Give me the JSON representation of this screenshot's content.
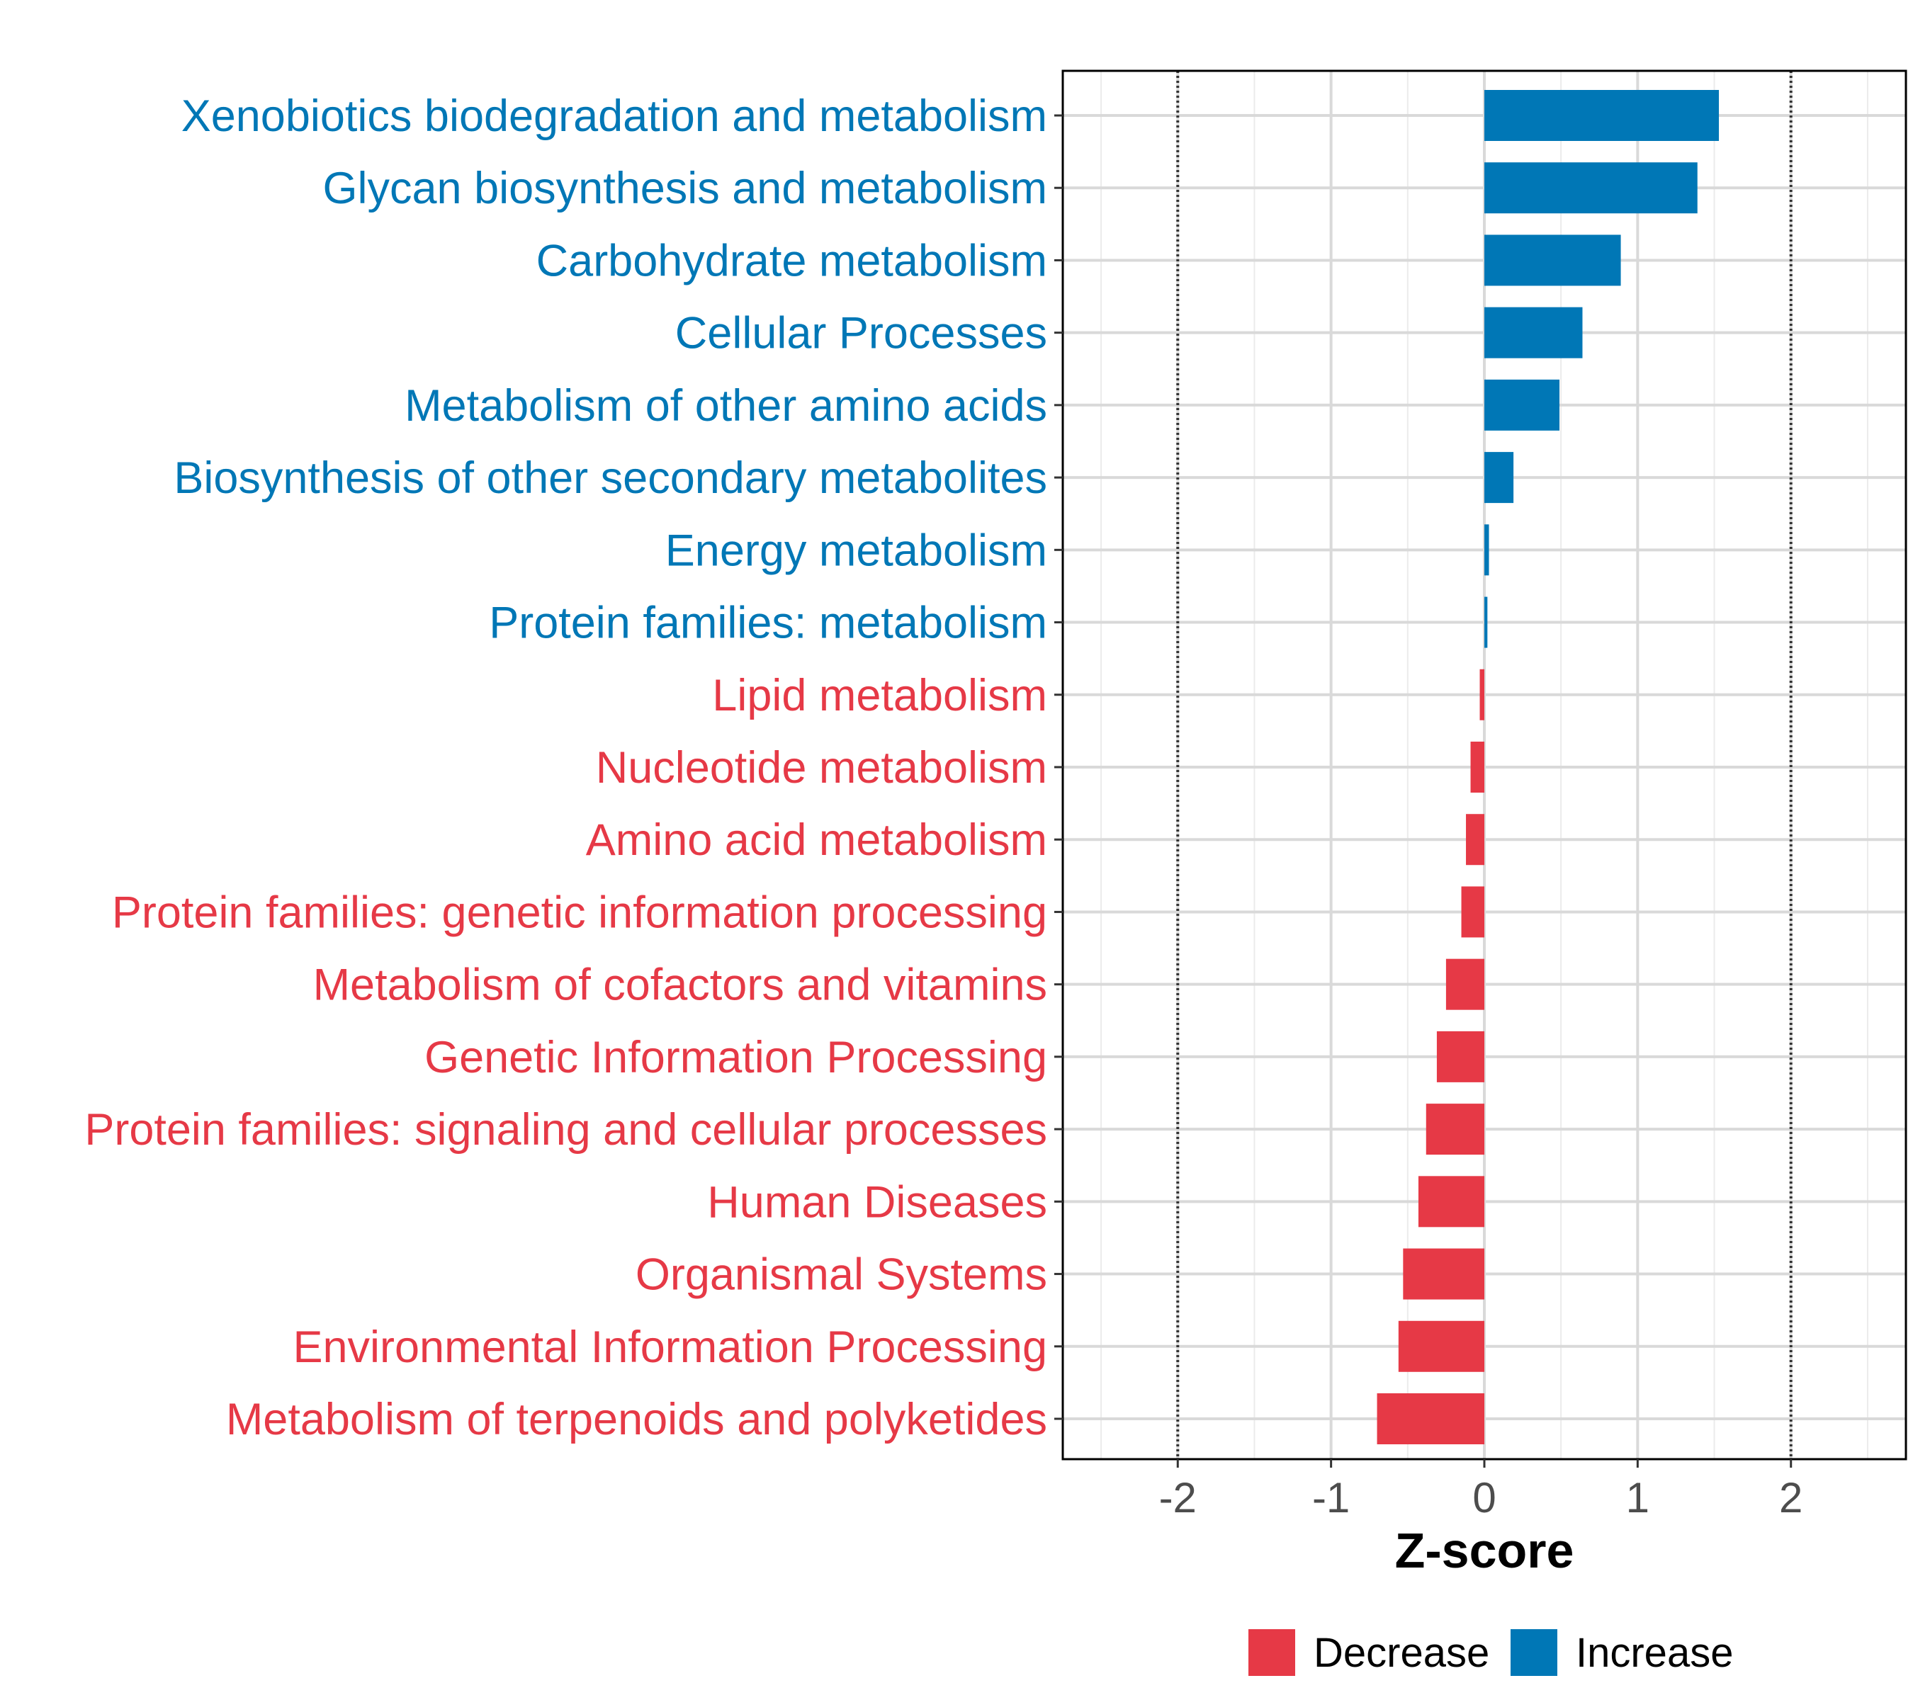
{
  "chart_data": {
    "type": "bar",
    "orientation": "horizontal",
    "title": "",
    "xlabel": "Z-score",
    "ylabel": "",
    "xlim": [
      -2.75,
      2.75
    ],
    "xticks": [
      -2,
      -1,
      0,
      1,
      2
    ],
    "xtick_labels": [
      "-2",
      "-1",
      "0",
      "1",
      "2"
    ],
    "reference_lines": [
      -2,
      2
    ],
    "grid": true,
    "categories": [
      "Xenobiotics biodegradation and metabolism",
      "Glycan biosynthesis and metabolism",
      "Carbohydrate metabolism",
      "Cellular Processes",
      "Metabolism of other amino acids",
      "Biosynthesis of other secondary metabolites",
      "Energy metabolism",
      "Protein families: metabolism",
      "Lipid metabolism",
      "Nucleotide metabolism",
      "Amino acid metabolism",
      "Protein families: genetic information processing",
      "Metabolism of cofactors and vitamins",
      "Genetic Information Processing",
      "Protein families: signaling and cellular processes",
      "Human Diseases",
      "Organismal Systems",
      "Environmental Information Processing",
      "Metabolism of terpenoids and polyketides"
    ],
    "values": [
      1.53,
      1.39,
      0.89,
      0.64,
      0.49,
      0.19,
      0.03,
      0.02,
      -0.03,
      -0.09,
      -0.12,
      -0.15,
      -0.25,
      -0.31,
      -0.38,
      -0.43,
      -0.53,
      -0.56,
      -0.7
    ],
    "groups": [
      "Increase",
      "Increase",
      "Increase",
      "Increase",
      "Increase",
      "Increase",
      "Increase",
      "Increase",
      "Decrease",
      "Decrease",
      "Decrease",
      "Decrease",
      "Decrease",
      "Decrease",
      "Decrease",
      "Decrease",
      "Decrease",
      "Decrease",
      "Decrease"
    ],
    "legend": {
      "position": "bottom",
      "entries": [
        {
          "name": "Decrease",
          "color": "#e63946"
        },
        {
          "name": "Increase",
          "color": "#0077b6"
        }
      ]
    },
    "colors": {
      "Decrease": "#e63946",
      "Increase": "#0077b6"
    }
  }
}
